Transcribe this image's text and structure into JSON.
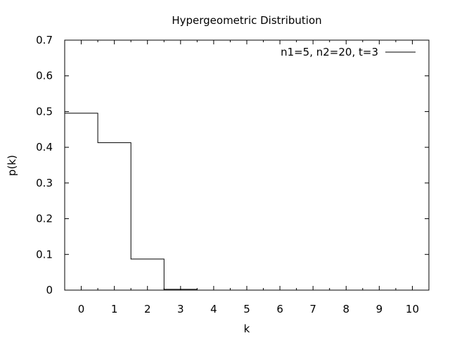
{
  "chart_data": {
    "type": "step",
    "title": "Hypergeometric Distribution",
    "xlabel": "k",
    "ylabel": "p(k)",
    "xlim": [
      -0.5,
      10.5
    ],
    "ylim": [
      0,
      0.7
    ],
    "xticks": [
      0,
      1,
      2,
      3,
      4,
      5,
      6,
      7,
      8,
      9,
      10
    ],
    "yticks": [
      0,
      0.1,
      0.2,
      0.3,
      0.4,
      0.5,
      0.6,
      0.7
    ],
    "ytick_labels": [
      "0",
      "0.1",
      "0.2",
      "0.3",
      "0.4",
      "0.5",
      "0.6",
      "0.7"
    ],
    "grid": false,
    "legend_position": "top-right",
    "series": [
      {
        "name": "n1=5, n2=20, t=3",
        "color": "#000000",
        "x": [
          0,
          1,
          2,
          3
        ],
        "values": [
          0.4956,
          0.413,
          0.087,
          0.0022
        ]
      }
    ]
  }
}
